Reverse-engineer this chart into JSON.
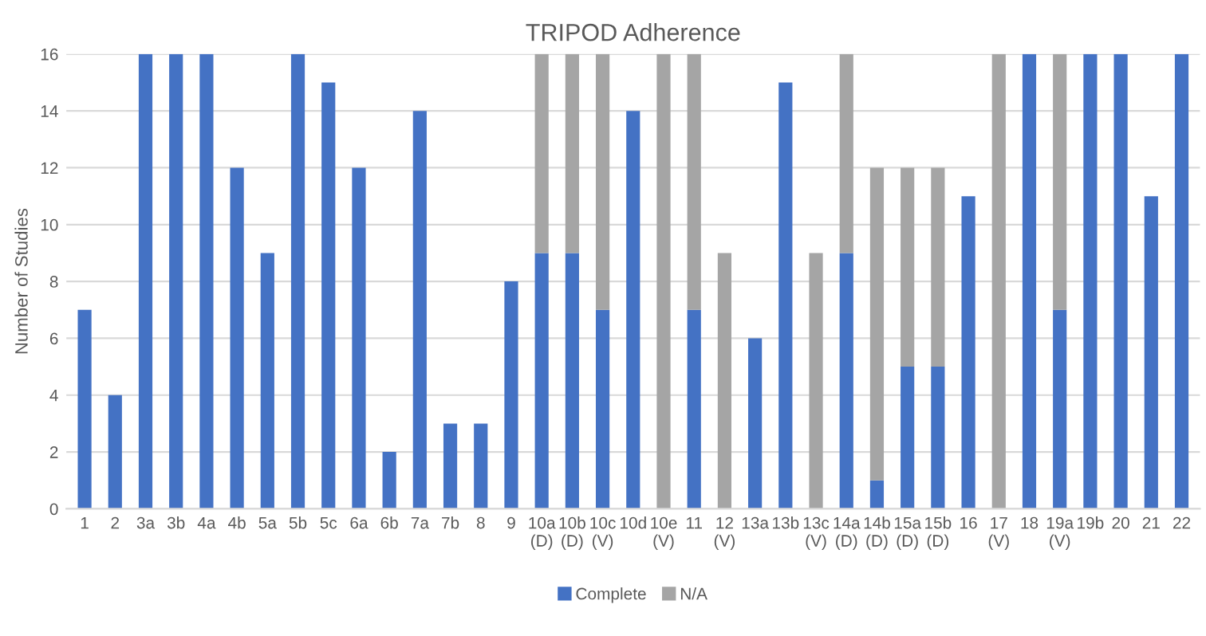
{
  "chart_data": {
    "type": "bar",
    "title": "TRIPOD Adherence",
    "ylabel": "Number of Studies",
    "categories": [
      "1",
      "2",
      "3a",
      "3b",
      "4a",
      "4b",
      "5a",
      "5b",
      "5c",
      "6a",
      "6b",
      "7a",
      "7b",
      "8",
      "9",
      "10a\n(D)",
      "10b\n(D)",
      "10c\n(V)",
      "10d",
      "10e\n(V)",
      "11",
      "12\n(V)",
      "13a",
      "13b",
      "13c\n(V)",
      "14a\n(D)",
      "14b\n(D)",
      "15a\n(D)",
      "15b\n(D)",
      "16",
      "17\n(V)",
      "18",
      "19a\n(V)",
      "19b",
      "20",
      "21",
      "22"
    ],
    "series": [
      {
        "name": "Complete",
        "color": "#4472c4",
        "values": [
          7,
          4,
          16,
          16,
          16,
          12,
          9,
          16,
          15,
          12,
          2,
          14,
          3,
          3,
          8,
          9,
          9,
          7,
          14,
          0,
          7,
          0,
          6,
          15,
          0,
          9,
          1,
          5,
          5,
          11,
          0,
          16,
          7,
          16,
          16,
          11,
          16
        ]
      },
      {
        "name": "N/A",
        "color": "#a5a5a5",
        "values": [
          0,
          0,
          0,
          0,
          0,
          0,
          0,
          0,
          0,
          0,
          0,
          0,
          0,
          0,
          0,
          7,
          7,
          9,
          0,
          16,
          9,
          9,
          0,
          0,
          9,
          7,
          11,
          7,
          7,
          0,
          16,
          0,
          9,
          0,
          0,
          0,
          0
        ]
      }
    ],
    "stacked": true,
    "ylim": [
      0,
      16
    ],
    "yticks": [
      0,
      2,
      4,
      6,
      8,
      10,
      12,
      14,
      16
    ],
    "grid": "y",
    "legend": "bottom"
  }
}
